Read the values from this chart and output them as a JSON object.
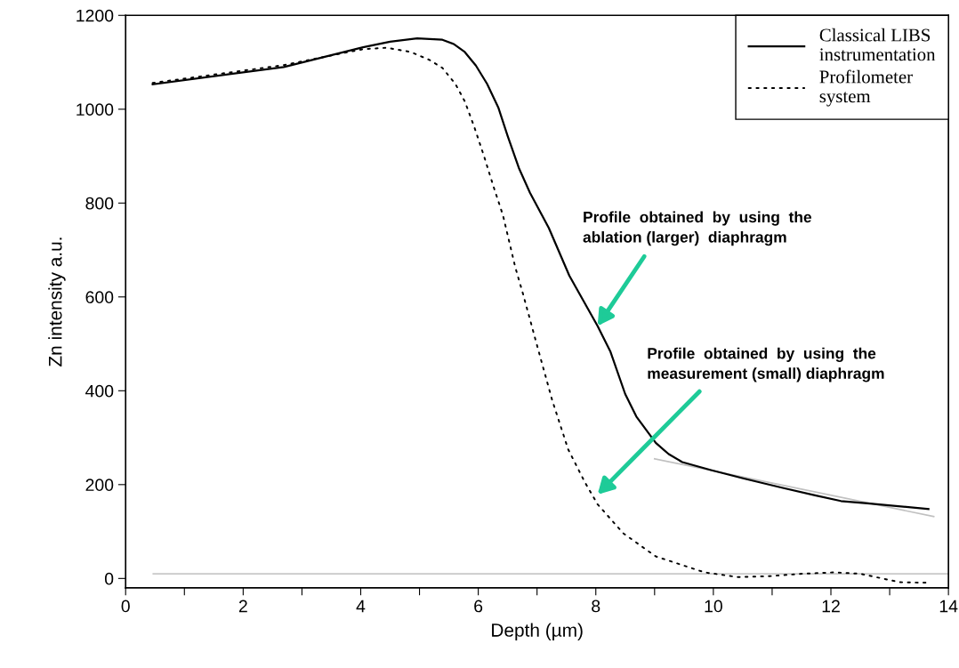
{
  "chart_data": {
    "type": "line",
    "xlabel": "Depth (µm)",
    "ylabel": "Zn intensity a.u.",
    "xlim": [
      0,
      14
    ],
    "ylim": [
      -20,
      1200
    ],
    "xticks": [
      0,
      {
        "value": 1,
        "label": null
      },
      2,
      {
        "value": 3,
        "label": null
      },
      4,
      {
        "value": 5,
        "label": null
      },
      6,
      {
        "value": 7,
        "label": null
      },
      8,
      {
        "value": 9,
        "label": null
      },
      10,
      {
        "value": 11,
        "label": null
      },
      12,
      {
        "value": 13,
        "label": null
      },
      14
    ],
    "yticks": [
      0,
      200,
      400,
      600,
      800,
      1000,
      1200
    ],
    "grid": false,
    "legend": "top right",
    "marker": "none",
    "series": [
      {
        "name": "Classical LIBS\ninstrumentation",
        "color": "#000000",
        "line_style": "solid",
        "x": [
          0.46,
          2.69,
          4.04,
          4.5,
          4.96,
          5.39,
          5.58,
          5.77,
          5.96,
          6.15,
          6.34,
          6.5,
          6.69,
          6.88,
          7.2,
          7.55,
          8.03,
          8.25,
          8.5,
          8.69,
          9.02,
          9.24,
          9.47,
          9.96,
          10.52,
          11.18,
          11.73,
          12.17,
          12.62,
          13.66
        ],
        "values": [
          1053,
          1090,
          1132,
          1144,
          1151,
          1148,
          1139,
          1122,
          1093,
          1054,
          1004,
          943,
          875,
          822,
          747,
          645,
          538,
          483,
          393,
          345,
          289,
          265,
          248,
          231,
          213,
          193,
          177,
          165,
          160,
          148
        ]
      },
      {
        "name": "Profilometer\nsystem",
        "color": "#000000",
        "line_style": "dotted",
        "x": [
          0.46,
          2.69,
          4.04,
          4.44,
          4.85,
          5.17,
          5.39,
          5.61,
          5.77,
          5.93,
          6.09,
          6.26,
          6.42,
          6.63,
          6.76,
          7.03,
          7.26,
          7.53,
          7.81,
          8.03,
          8.47,
          9.02,
          9.85,
          10.41,
          10.96,
          11.51,
          12.06,
          12.5,
          13.17,
          13.61
        ],
        "values": [
          1056,
          1094,
          1128,
          1131,
          1122,
          1105,
          1088,
          1054,
          1017,
          963,
          903,
          835,
          774,
          663,
          607,
          483,
          379,
          275,
          206,
          158,
          96,
          47,
          13,
          3,
          5,
          10,
          13,
          10,
          -8,
          -9
        ]
      },
      {
        "color": "#c0c0c0",
        "line_style": "solid",
        "x": [
          9.0,
          13.75
        ],
        "values": [
          255,
          132
        ]
      },
      {
        "color": "#c8c8c8",
        "line_style": "solid",
        "x": [
          0.47,
          14
        ],
        "values": [
          10,
          10
        ]
      }
    ],
    "annotations": [
      {
        "text": "Profile  obtained  by  using  the\nablation (larger)  diaphragm",
        "x": 8.03,
        "y": 538
      },
      {
        "text": "Profile  obtained  by  using  the\nmeasurement (small) diaphragm",
        "x": 8.03,
        "y": 179
      }
    ]
  }
}
